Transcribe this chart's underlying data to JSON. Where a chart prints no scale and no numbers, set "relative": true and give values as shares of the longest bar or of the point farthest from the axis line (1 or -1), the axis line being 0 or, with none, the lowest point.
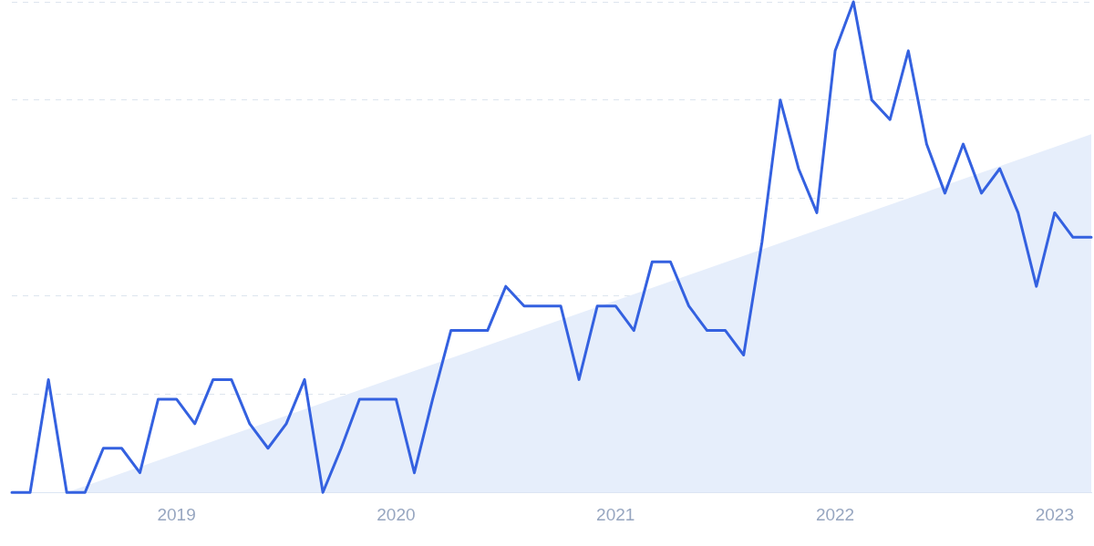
{
  "chart_data": {
    "type": "line",
    "relative": true,
    "x": [
      "2018-04",
      "2018-05",
      "2018-06",
      "2018-07",
      "2018-08",
      "2018-09",
      "2018-10",
      "2018-11",
      "2018-12",
      "2019-01",
      "2019-02",
      "2019-03",
      "2019-04",
      "2019-05",
      "2019-06",
      "2019-07",
      "2019-08",
      "2019-09",
      "2019-10",
      "2019-11",
      "2019-12",
      "2020-01",
      "2020-02",
      "2020-03",
      "2020-04",
      "2020-05",
      "2020-06",
      "2020-07",
      "2020-08",
      "2020-09",
      "2020-10",
      "2020-11",
      "2020-12",
      "2021-01",
      "2021-02",
      "2021-03",
      "2021-04",
      "2021-05",
      "2021-06",
      "2021-07",
      "2021-08",
      "2021-09",
      "2021-10",
      "2021-11",
      "2021-12",
      "2022-01",
      "2022-02",
      "2022-03",
      "2022-04",
      "2022-05",
      "2022-06",
      "2022-07",
      "2022-08",
      "2022-09",
      "2022-10",
      "2022-11",
      "2022-12",
      "2023-01",
      "2023-02",
      "2023-03"
    ],
    "series": [
      {
        "type": "area",
        "color": "#e6eefb",
        "x": [
          "2018-07",
          "2023-03"
        ],
        "values": [
          0,
          0.73
        ]
      },
      {
        "color": "#3461e0",
        "values": [
          0,
          0,
          0.23,
          0,
          0,
          0.09,
          0.09,
          0.04,
          0.19,
          0.19,
          0.14,
          0.23,
          0.23,
          0.14,
          0.09,
          0.14,
          0.23,
          0,
          0.09,
          0.19,
          0.19,
          0.19,
          0.04,
          0.19,
          0.33,
          0.33,
          0.33,
          0.42,
          0.38,
          0.38,
          0.38,
          0.23,
          0.38,
          0.38,
          0.33,
          0.47,
          0.47,
          0.38,
          0.33,
          0.33,
          0.28,
          0.51,
          0.8,
          0.66,
          0.57,
          0.9,
          1,
          0.8,
          0.76,
          0.9,
          0.71,
          0.61,
          0.71,
          0.61,
          0.66,
          0.57,
          0.42,
          0.57,
          0.52,
          0.52
        ]
      }
    ],
    "xlim": [
      "2018-04",
      "2023-03"
    ],
    "xticks": [
      "2019",
      "2020",
      "2021",
      "2022",
      "2023"
    ],
    "grid": "y",
    "legend": false,
    "marker": "none",
    "line_style": "solid"
  }
}
